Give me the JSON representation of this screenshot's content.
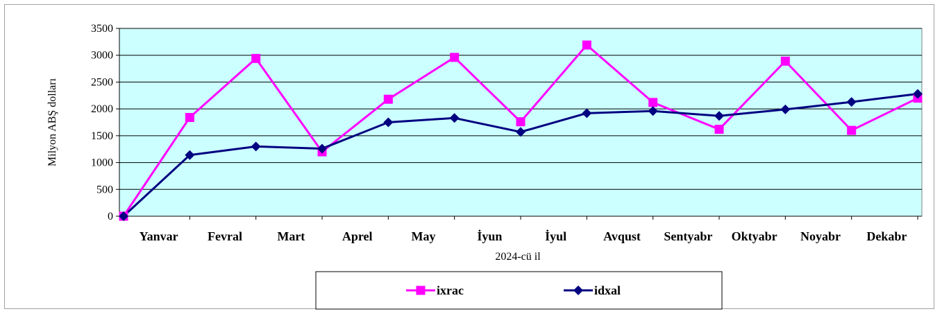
{
  "chart_data": {
    "type": "line",
    "title": "",
    "xlabel": "2024-cü il",
    "ylabel": "Milyon ABŞ dolları",
    "categories": [
      "",
      "Yanvar",
      "Fevral",
      "Mart",
      "Aprel",
      "May",
      "İyun",
      "İyul",
      "Avqust",
      "Sentyabr",
      "Oktyabr",
      "Noyabr",
      "Dekabr"
    ],
    "ylim": [
      0,
      3500
    ],
    "yticks": [
      0,
      500,
      1000,
      1500,
      2000,
      2500,
      3000,
      3500
    ],
    "grid": true,
    "legend": "bottom",
    "series": [
      {
        "name": "ixrac",
        "color": "#ff00ff",
        "marker": "square",
        "values": [
          0,
          1840,
          2940,
          1200,
          2180,
          2960,
          1760,
          3190,
          2120,
          1620,
          2890,
          1600,
          2200
        ]
      },
      {
        "name": "idxal",
        "color": "#000080",
        "marker": "diamond",
        "values": [
          0,
          1140,
          1300,
          1260,
          1750,
          1830,
          1570,
          1920,
          1960,
          1870,
          1990,
          2130,
          2280
        ]
      }
    ],
    "plot_background": "#ccffff"
  }
}
